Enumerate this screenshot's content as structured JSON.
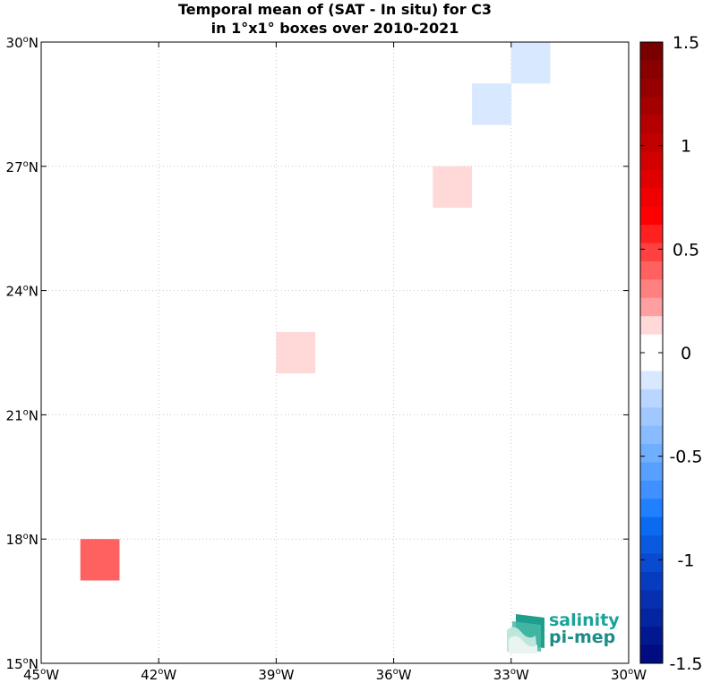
{
  "chart_data": {
    "type": "heatmap",
    "title_lines": [
      "Temporal mean of (SAT - In situ) for C3",
      "in 1°x1° boxes over 2010-2021"
    ],
    "x_axis": {
      "range": [
        -45,
        -30
      ],
      "ticks": [
        -45,
        -42,
        -39,
        -36,
        -33,
        -30
      ],
      "tick_labels": [
        "45°W",
        "42°W",
        "39°W",
        "36°W",
        "33°W",
        "30°W"
      ]
    },
    "y_axis": {
      "range": [
        15,
        30
      ],
      "ticks": [
        15,
        18,
        21,
        24,
        27,
        30
      ],
      "tick_labels": [
        "15°N",
        "18°N",
        "21°N",
        "24°N",
        "27°N",
        "30°N"
      ]
    },
    "grid": true,
    "cells": [
      {
        "lon": [
          -33,
          -32
        ],
        "lat": [
          29,
          30
        ],
        "value": -0.15
      },
      {
        "lon": [
          -34,
          -33
        ],
        "lat": [
          28,
          29
        ],
        "value": -0.15
      },
      {
        "lon": [
          -35,
          -34
        ],
        "lat": [
          26,
          27
        ],
        "value": 0.15
      },
      {
        "lon": [
          -39,
          -38
        ],
        "lat": [
          22,
          23
        ],
        "value": 0.15
      },
      {
        "lon": [
          -44,
          -43
        ],
        "lat": [
          17,
          18
        ],
        "value": 0.4
      }
    ],
    "colorbar": {
      "range": [
        -1.5,
        1.5
      ],
      "ticks": [
        1.5,
        1,
        0.5,
        0,
        -0.5,
        -1,
        -1.5
      ],
      "tick_labels": [
        "1.5",
        "1",
        "0.5",
        "0",
        "-0.5",
        "-1",
        "-1.5"
      ],
      "colors_top_to_bottom": [
        "#7a0000",
        "#880000",
        "#960000",
        "#a50000",
        "#b40000",
        "#c30000",
        "#d20000",
        "#e10000",
        "#f00000",
        "#ff0000",
        "#ff2020",
        "#ff4040",
        "#ff6060",
        "#ff8080",
        "#ffa0a0",
        "#ffd8d8",
        "#ffffff",
        "#ffffff",
        "#d8e8ff",
        "#b8d6ff",
        "#a0c8ff",
        "#88bbff",
        "#70aeff",
        "#58a0ff",
        "#4090ff",
        "#2080ff",
        "#0a6af0",
        "#0a5ae0",
        "#0a4ad0",
        "#083cc0",
        "#0630b0",
        "#0424a0",
        "#021890",
        "#000c80"
      ]
    }
  },
  "logo": {
    "line1": "salinity",
    "line2": "pi-mep"
  }
}
